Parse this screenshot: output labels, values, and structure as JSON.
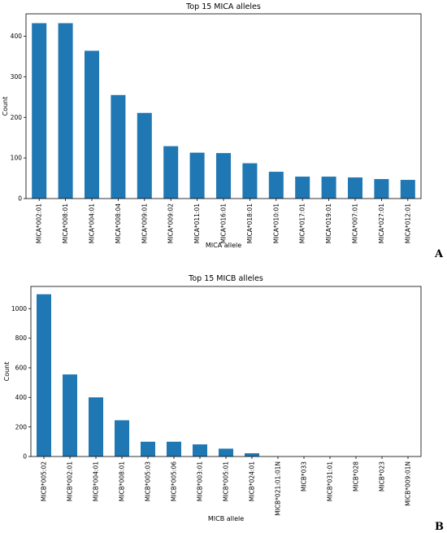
{
  "panel_letters": [
    "A",
    "B"
  ],
  "chart_data": [
    {
      "type": "bar",
      "title": "Top 15 MICA alleles",
      "xlabel": "MICA allele",
      "ylabel": "Count",
      "ylim": [
        0,
        455
      ],
      "yticks": [
        0,
        100,
        200,
        300,
        400
      ],
      "color": "#1f77b4",
      "grid": false,
      "categories": [
        "MICA*002:01",
        "MICA*008:01",
        "MICA*004:01",
        "MICA*008:04",
        "MICA*009:01",
        "MICA*009:02",
        "MICA*011:01",
        "MICA*016:01",
        "MICA*018:01",
        "MICA*010:01",
        "MICA*017:01",
        "MICA*019:01",
        "MICA*007:01",
        "MICA*027:01",
        "MICA*012:01"
      ],
      "values": [
        432,
        432,
        364,
        255,
        211,
        129,
        113,
        112,
        87,
        66,
        54,
        54,
        52,
        48,
        46
      ]
    },
    {
      "type": "bar",
      "title": "Top 15 MICB alleles",
      "xlabel": "MICB allele",
      "ylabel": "Count",
      "ylim": [
        0,
        1150
      ],
      "yticks": [
        0,
        200,
        400,
        600,
        800,
        1000
      ],
      "color": "#1f77b4",
      "grid": false,
      "categories": [
        "MICB*005:02",
        "MICB*002:01",
        "MICB*004:01",
        "MICB*008:01",
        "MICB*005:03",
        "MICB*005:06",
        "MICB*003:01",
        "MICB*005:01",
        "MICB*024:01",
        "MICB*021:01:01N",
        "MICB*033",
        "MICB*031:01",
        "MICB*028",
        "MICB*023",
        "MICB*009:01N"
      ],
      "values": [
        1097,
        555,
        400,
        245,
        100,
        100,
        82,
        53,
        22,
        0,
        0,
        0,
        0,
        0,
        0
      ]
    }
  ]
}
